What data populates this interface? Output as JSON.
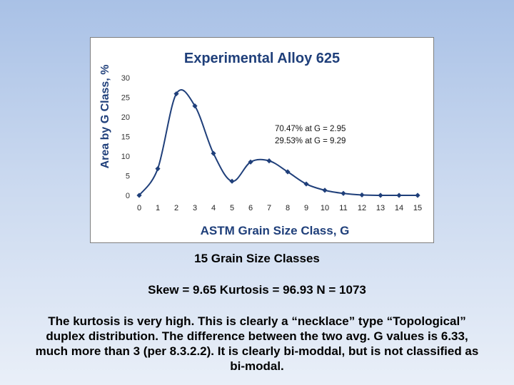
{
  "chart_data": {
    "type": "line",
    "title": "Experimental Alloy 625",
    "xlabel": "ASTM Grain Size Class, G",
    "ylabel": "Area by G Class, %",
    "x": [
      0,
      1,
      2,
      3,
      4,
      5,
      6,
      7,
      8,
      9,
      10,
      11,
      12,
      13,
      14,
      15
    ],
    "series": [
      {
        "values": [
          0,
          6.8,
          25.9,
          22.8,
          10.7,
          3.6,
          8.5,
          8.8,
          6.0,
          2.9,
          1.3,
          0.5,
          0.1,
          0.0,
          0.0,
          0.0
        ],
        "color": "#1f3f7a"
      }
    ],
    "xlim": [
      0,
      15
    ],
    "ylim": [
      0,
      30
    ],
    "xticks": [
      "0",
      "1",
      "2",
      "3",
      "4",
      "5",
      "6",
      "7",
      "8",
      "9",
      "10",
      "11",
      "12",
      "13",
      "14",
      "15"
    ],
    "yticks": [
      "0",
      "5",
      "10",
      "15",
      "20",
      "25",
      "30"
    ],
    "grid": false,
    "legend": "none",
    "annotations": [
      "70.47%  at G = 2.95",
      "29.53%  at G = 9.29"
    ]
  },
  "captions": {
    "subtitle": "15 Grain Size Classes",
    "stats": "Skew = 9.65   Kurtosis = 96.93  N = 1073",
    "note": "The kurtosis is very high. This is clearly a “necklace” type “Topological” duplex distribution. The difference between the two avg. G values is 6.33, much more than 3 (per 8.3.2.2). It is clearly bi-moddal, but is not classified as bi-modal."
  }
}
